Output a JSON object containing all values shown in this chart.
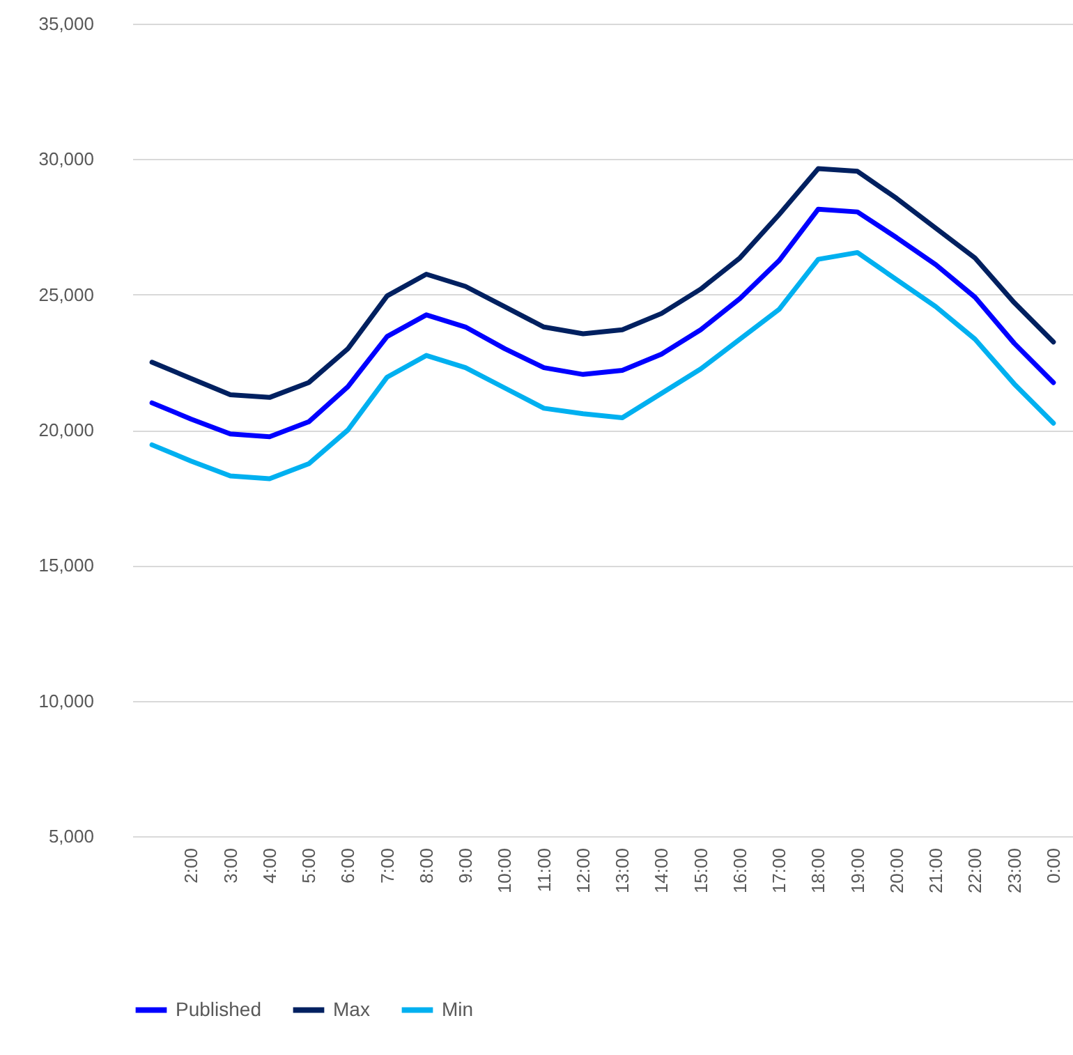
{
  "chart_data": {
    "type": "line",
    "categories": [
      null,
      "2:00",
      "3:00",
      "4:00",
      "5:00",
      "6:00",
      "7:00",
      "8:00",
      "9:00",
      "10:00",
      "11:00",
      "12:00",
      "13:00",
      "14:00",
      "15:00",
      "16:00",
      "17:00",
      "18:00",
      "19:00",
      "20:00",
      "21:00",
      "22:00",
      "23:00",
      "0:00"
    ],
    "series": [
      {
        "name": "Published",
        "color": "#0000ff",
        "values": [
          21000,
          20400,
          19850,
          19750,
          20300,
          21600,
          23450,
          24250,
          23800,
          23000,
          22300,
          22050,
          22200,
          22800,
          23700,
          24850,
          26250,
          28150,
          28050,
          27100,
          26100,
          24900,
          23200,
          21750
        ]
      },
      {
        "name": "Max",
        "color": "#002060",
        "values": [
          22500,
          21900,
          21300,
          21200,
          21750,
          23000,
          24950,
          25750,
          25300,
          24550,
          23800,
          23550,
          23700,
          24300,
          25200,
          26350,
          27950,
          29650,
          29550,
          28550,
          27450,
          26350,
          24700,
          23250
        ]
      },
      {
        "name": "Min",
        "color": "#00b0f0",
        "values": [
          19450,
          18850,
          18300,
          18200,
          18750,
          20000,
          21950,
          22750,
          22300,
          21550,
          20800,
          20600,
          20450,
          21350,
          22250,
          23350,
          24450,
          26300,
          26550,
          25550,
          24550,
          23350,
          21700,
          20250
        ]
      }
    ],
    "ylim": [
      5000,
      35000
    ],
    "yticks": [
      {
        "value": 5000,
        "label": "5,000"
      },
      {
        "value": 10000,
        "label": "10,000"
      },
      {
        "value": 15000,
        "label": "15,000"
      },
      {
        "value": 20000,
        "label": "20,000"
      },
      {
        "value": 25000,
        "label": "25,000"
      },
      {
        "value": 30000,
        "label": "30,000"
      },
      {
        "value": 35000,
        "label": "35,000"
      }
    ],
    "grid": "y",
    "legend": "bottom",
    "line_style": "solid",
    "marker": "none"
  }
}
